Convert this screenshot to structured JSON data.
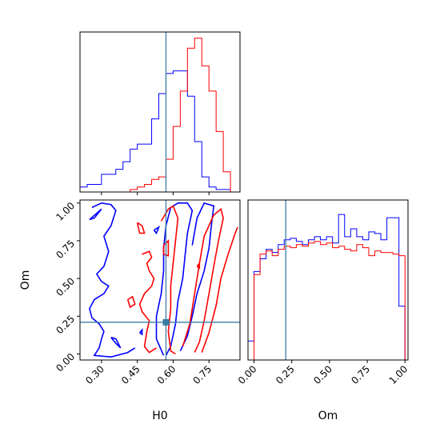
{
  "chart_data": {
    "type": "corner",
    "parameters": [
      "H0",
      "Om"
    ],
    "axis_labels": {
      "x_H0": "H0",
      "y_Om": "Om",
      "x_Om": "Om"
    },
    "H0_range": [
      0.21,
      0.88
    ],
    "Om_range": [
      -0.04,
      1.02
    ],
    "H0_ticks": [
      "0.30",
      "0.45",
      "0.60",
      "0.75"
    ],
    "H0_tick_values": [
      0.3,
      0.45,
      0.6,
      0.75
    ],
    "Om_ticks": [
      "0.00",
      "0.25",
      "0.50",
      "0.75",
      "1.00"
    ],
    "Om_tick_values": [
      0.0,
      0.25,
      0.5,
      0.75,
      1.0
    ],
    "truth": {
      "H0": 0.57,
      "Om": 0.21
    },
    "colors": {
      "blue": "#0000ff",
      "red": "#ff0000",
      "truth": "#3a7ca5"
    },
    "H0_histograms": {
      "bin_edges": [
        0.21,
        0.24,
        0.27,
        0.3,
        0.33,
        0.36,
        0.39,
        0.42,
        0.45,
        0.48,
        0.51,
        0.54,
        0.57,
        0.6,
        0.63,
        0.66,
        0.69,
        0.72,
        0.75,
        0.78,
        0.81,
        0.84,
        0.87
      ],
      "blue": [
        2,
        3,
        3,
        7,
        7,
        9,
        12,
        17,
        19,
        19,
        29,
        39,
        47,
        48,
        48,
        38,
        20,
        6,
        2,
        1,
        1,
        0
      ],
      "red": [
        0,
        0,
        0,
        0,
        0,
        0,
        0,
        1,
        2,
        3,
        5,
        6,
        13,
        26,
        40,
        57,
        61,
        50,
        40,
        24,
        8,
        0
      ]
    },
    "Om_histograms": {
      "bin_edges": [
        -0.04,
        0.0,
        0.04,
        0.08,
        0.12,
        0.16,
        0.2,
        0.24,
        0.28,
        0.32,
        0.36,
        0.4,
        0.44,
        0.48,
        0.52,
        0.56,
        0.6,
        0.64,
        0.68,
        0.72,
        0.76,
        0.8,
        0.84,
        0.88,
        0.92,
        0.96,
        1.0
      ],
      "blue": [
        0.12,
        0.56,
        0.64,
        0.7,
        0.68,
        0.73,
        0.76,
        0.77,
        0.75,
        0.73,
        0.76,
        0.78,
        0.76,
        0.78,
        0.74,
        0.92,
        0.78,
        0.83,
        0.78,
        0.76,
        0.81,
        0.8,
        0.76,
        0.9,
        0.9,
        0.34
      ],
      "red": [
        0.0,
        0.54,
        0.67,
        0.69,
        0.66,
        0.7,
        0.72,
        0.71,
        0.73,
        0.72,
        0.74,
        0.75,
        0.73,
        0.74,
        0.71,
        0.72,
        0.7,
        0.69,
        0.73,
        0.71,
        0.66,
        0.69,
        0.68,
        0.68,
        0.67,
        0.66
      ]
    },
    "contours": {
      "blue": [
        [
          [
            0.26,
            0.97
          ],
          [
            0.3,
            1.0
          ],
          [
            0.34,
            0.99
          ],
          [
            0.36,
            0.95
          ],
          [
            0.34,
            0.85
          ],
          [
            0.31,
            0.78
          ],
          [
            0.33,
            0.68
          ],
          [
            0.31,
            0.58
          ],
          [
            0.28,
            0.53
          ],
          [
            0.3,
            0.48
          ],
          [
            0.33,
            0.45
          ],
          [
            0.31,
            0.4
          ],
          [
            0.27,
            0.36
          ],
          [
            0.25,
            0.3
          ],
          [
            0.26,
            0.24
          ],
          [
            0.29,
            0.2
          ],
          [
            0.31,
            0.15
          ],
          [
            0.3,
            0.1
          ],
          [
            0.29,
            0.04
          ],
          [
            0.27,
            -0.01
          ],
          [
            0.34,
            -0.02
          ],
          [
            0.41,
            0.01
          ],
          [
            0.44,
            0.04
          ]
        ],
        [
          [
            0.25,
            0.89
          ],
          [
            0.3,
            0.96
          ],
          [
            0.27,
            0.9
          ],
          [
            0.25,
            0.89
          ]
        ],
        [
          [
            0.34,
            0.11
          ],
          [
            0.36,
            0.07
          ],
          [
            0.38,
            0.04
          ],
          [
            0.36,
            0.1
          ],
          [
            0.34,
            0.11
          ]
        ],
        [
          [
            0.56,
            -0.01
          ],
          [
            0.53,
            0.1
          ],
          [
            0.53,
            0.25
          ],
          [
            0.55,
            0.4
          ],
          [
            0.56,
            0.55
          ],
          [
            0.56,
            0.7
          ],
          [
            0.57,
            0.85
          ],
          [
            0.59,
            0.97
          ],
          [
            0.62,
            1.0
          ],
          [
            0.66,
            1.0
          ],
          [
            0.68,
            0.95
          ],
          [
            0.66,
            0.8
          ],
          [
            0.65,
            0.65
          ],
          [
            0.64,
            0.5
          ],
          [
            0.62,
            0.35
          ],
          [
            0.61,
            0.2
          ],
          [
            0.59,
            0.05
          ],
          [
            0.57,
            -0.01
          ]
        ],
        [
          [
            0.68,
            0.72
          ],
          [
            0.7,
            0.9
          ],
          [
            0.73,
            1.0
          ],
          [
            0.77,
            0.98
          ],
          [
            0.76,
            0.85
          ],
          [
            0.75,
            0.7
          ],
          [
            0.73,
            0.55
          ],
          [
            0.7,
            0.4
          ],
          [
            0.68,
            0.25
          ],
          [
            0.66,
            0.12
          ],
          [
            0.63,
            0.02
          ]
        ],
        [
          [
            0.52,
            0.82
          ],
          [
            0.54,
            0.84
          ],
          [
            0.53,
            0.8
          ],
          [
            0.52,
            0.82
          ]
        ],
        [
          [
            0.46,
            0.14
          ],
          [
            0.47,
            0.16
          ],
          [
            0.47,
            0.13
          ],
          [
            0.46,
            0.14
          ]
        ]
      ],
      "red": [
        [
          [
            0.47,
            0.66
          ],
          [
            0.5,
            0.68
          ],
          [
            0.51,
            0.64
          ],
          [
            0.49,
            0.6
          ],
          [
            0.5,
            0.55
          ],
          [
            0.52,
            0.5
          ],
          [
            0.51,
            0.45
          ],
          [
            0.48,
            0.4
          ],
          [
            0.46,
            0.33
          ],
          [
            0.47,
            0.28
          ],
          [
            0.5,
            0.22
          ],
          [
            0.49,
            0.15
          ],
          [
            0.48,
            0.05
          ],
          [
            0.5,
            0.01
          ],
          [
            0.53,
            0.04
          ]
        ],
        [
          [
            0.45,
            0.87
          ],
          [
            0.47,
            0.85
          ],
          [
            0.48,
            0.8
          ],
          [
            0.46,
            0.8
          ],
          [
            0.45,
            0.87
          ]
        ],
        [
          [
            0.41,
            0.36
          ],
          [
            0.43,
            0.38
          ],
          [
            0.44,
            0.33
          ],
          [
            0.42,
            0.31
          ],
          [
            0.41,
            0.36
          ]
        ],
        [
          [
            0.55,
            0.88
          ],
          [
            0.58,
            0.96
          ],
          [
            0.6,
            0.98
          ],
          [
            0.62,
            0.9
          ],
          [
            0.61,
            0.75
          ],
          [
            0.6,
            0.6
          ],
          [
            0.59,
            0.45
          ],
          [
            0.59,
            0.3
          ],
          [
            0.58,
            0.15
          ],
          [
            0.59,
            0.02
          ],
          [
            0.61,
            0.0
          ]
        ],
        [
          [
            0.56,
            0.72
          ],
          [
            0.58,
            0.75
          ],
          [
            0.58,
            0.65
          ],
          [
            0.56,
            0.66
          ],
          [
            0.56,
            0.72
          ]
        ],
        [
          [
            0.64,
            0.05
          ],
          [
            0.67,
            0.2
          ],
          [
            0.69,
            0.4
          ],
          [
            0.71,
            0.6
          ],
          [
            0.73,
            0.78
          ],
          [
            0.77,
            0.92
          ],
          [
            0.8,
            0.96
          ],
          [
            0.81,
            0.9
          ],
          [
            0.79,
            0.75
          ],
          [
            0.77,
            0.58
          ],
          [
            0.75,
            0.4
          ],
          [
            0.73,
            0.22
          ],
          [
            0.71,
            0.08
          ],
          [
            0.69,
            0.01
          ]
        ],
        [
          [
            0.72,
            0.01
          ],
          [
            0.75,
            0.14
          ],
          [
            0.78,
            0.32
          ],
          [
            0.8,
            0.5
          ],
          [
            0.83,
            0.66
          ],
          [
            0.86,
            0.8
          ],
          [
            0.87,
            0.84
          ]
        ],
        [
          [
            0.7,
            0.58
          ],
          [
            0.71,
            0.6
          ],
          [
            0.71,
            0.57
          ],
          [
            0.7,
            0.58
          ]
        ]
      ]
    }
  }
}
